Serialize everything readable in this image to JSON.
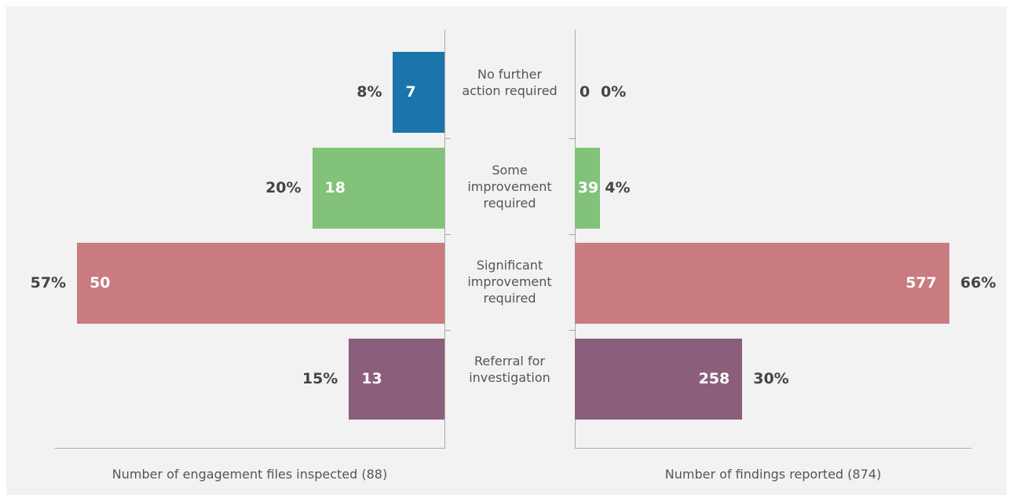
{
  "chart_data": [
    {
      "type": "hbar-left",
      "x_label": "Number of engagement files inspected (88)",
      "categories": [
        "No further action required",
        "Some improvement required",
        "Significant improvement required",
        "Referral for investigation"
      ],
      "values": [
        7,
        18,
        50,
        13
      ],
      "share_labels": [
        "8%",
        "20%",
        "57%",
        "15%"
      ],
      "colors": [
        "#1b75ab",
        "#82c27a",
        "#c97b80",
        "#8b5f7c"
      ],
      "xlim": [
        0,
        53
      ]
    },
    {
      "type": "hbar-right",
      "x_label": "Number of findings reported (874)",
      "values": [
        0,
        39,
        577,
        258
      ],
      "share_labels": [
        "0%",
        "4%",
        "66%",
        "30%"
      ],
      "colors": [
        "#1b75ab",
        "#82c27a",
        "#c97b80",
        "#8b5f7c"
      ],
      "xlim": [
        0,
        611
      ]
    }
  ]
}
